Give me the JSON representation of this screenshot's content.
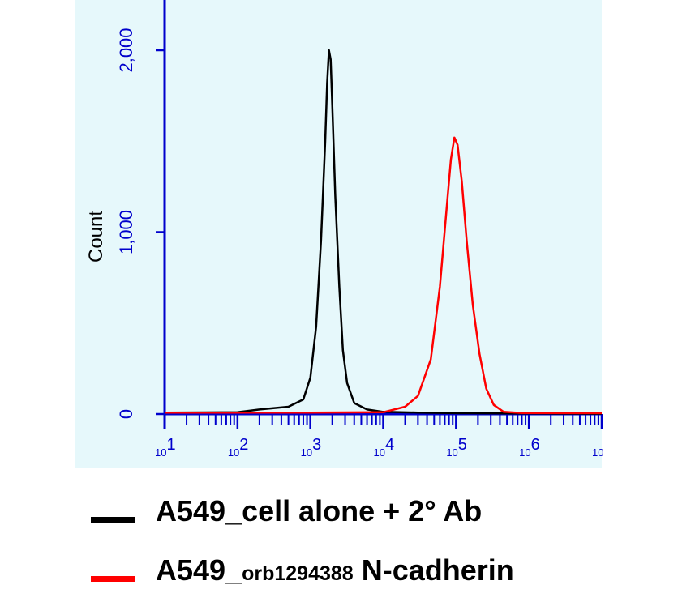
{
  "chart_data": {
    "type": "line",
    "title": "",
    "xlabel": "",
    "ylabel": "Count",
    "xscale": "log",
    "xlim": [
      10,
      10000000
    ],
    "ylim": [
      0,
      2200
    ],
    "grid": false,
    "legend_placement": "bottom",
    "x_ticks": [
      {
        "base": "10",
        "exp": "1"
      },
      {
        "base": "10",
        "exp": "2"
      },
      {
        "base": "10",
        "exp": "3"
      },
      {
        "base": "10",
        "exp": "4"
      },
      {
        "base": "10",
        "exp": "5"
      },
      {
        "base": "10",
        "exp": "6"
      },
      {
        "base": "10",
        "exp": ""
      }
    ],
    "y_ticks": [
      {
        "value": 0,
        "label": "0"
      },
      {
        "value": 1000,
        "label": "1,000"
      },
      {
        "value": 2000,
        "label": "2,000"
      }
    ],
    "series": [
      {
        "name": "A549_cell alone + 2° Ab",
        "color": "#000000",
        "x": [
          10,
          100,
          200,
          500,
          800,
          1000,
          1200,
          1400,
          1600,
          1700,
          1800,
          1900,
          2000,
          2200,
          2500,
          2800,
          3200,
          4000,
          6000,
          10000,
          30000,
          100000,
          1000000,
          10000000
        ],
        "y": [
          8,
          10,
          25,
          40,
          80,
          200,
          480,
          950,
          1500,
          1820,
          2000,
          1950,
          1700,
          1200,
          700,
          350,
          170,
          60,
          25,
          12,
          8,
          5,
          3,
          2
        ]
      },
      {
        "name": "A549_orb1294388 N-cadherin",
        "color": "#ff0000",
        "x": [
          10,
          1000,
          10000,
          20000,
          30000,
          45000,
          60000,
          75000,
          85000,
          95000,
          105000,
          120000,
          140000,
          170000,
          210000,
          260000,
          330000,
          450000,
          800000,
          10000000
        ],
        "y": [
          8,
          8,
          10,
          40,
          100,
          300,
          700,
          1150,
          1400,
          1520,
          1480,
          1280,
          950,
          600,
          330,
          140,
          50,
          12,
          6,
          5
        ]
      }
    ]
  },
  "legend": [
    {
      "color": "#000000",
      "text": "A549_cell alone + 2° Ab",
      "small": "",
      "rest": ""
    },
    {
      "color": "#ff0000",
      "text": "A549_",
      "small": "orb1294388",
      "rest": " N-cadherin"
    }
  ]
}
